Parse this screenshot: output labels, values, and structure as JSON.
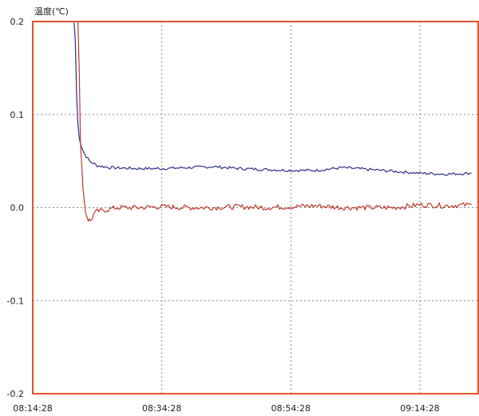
{
  "chart_data": {
    "type": "line",
    "ylabel": "温度(℃)",
    "ylim": [
      -0.2,
      0.2
    ],
    "y_ticks": [
      "0.2",
      "0.1",
      "0.0",
      "-0.1",
      "-0.2"
    ],
    "x_ticks": [
      "08:14:28",
      "08:34:28",
      "08:54:28",
      "09:14:28"
    ],
    "grid": true,
    "frame_color": "#e0552a",
    "series": [
      {
        "color": "#2b2f8c",
        "x": [
          "08:14:28",
          "08:20:28",
          "08:20:52",
          "08:21:04",
          "08:21:16",
          "08:21:28",
          "08:21:40",
          "08:22:04",
          "08:22:28",
          "08:23:16",
          "08:24:28",
          "08:26:28",
          "08:30:28",
          "08:34:28",
          "08:38:28",
          "08:42:28",
          "08:46:28",
          "08:50:28",
          "08:54:28",
          "08:58:28",
          "09:02:28",
          "09:06:28",
          "09:10:28",
          "09:14:28",
          "09:18:28",
          "09:22:28"
        ],
        "y": [
          0.2,
          0.2,
          0.2,
          0.18,
          0.12,
          0.09,
          0.075,
          0.065,
          0.058,
          0.05,
          0.045,
          0.043,
          0.042,
          0.042,
          0.043,
          0.044,
          0.042,
          0.041,
          0.04,
          0.04,
          0.043,
          0.041,
          0.039,
          0.037,
          0.036,
          0.037
        ],
        "noise": 0.0015
      },
      {
        "color": "#c0392b",
        "x": [
          "08:14:28",
          "08:21:04",
          "08:21:28",
          "08:21:40",
          "08:21:52",
          "08:22:16",
          "08:22:40",
          "08:23:04",
          "08:23:28",
          "08:23:52",
          "08:24:28",
          "08:25:28",
          "08:27:28",
          "08:30:28",
          "08:34:28",
          "08:38:28",
          "08:42:28",
          "08:46:28",
          "08:50:28",
          "08:54:28",
          "08:58:28",
          "09:02:28",
          "09:06:28",
          "09:10:28",
          "09:14:28",
          "09:18:28",
          "09:22:28"
        ],
        "y": [
          0.2,
          0.2,
          0.2,
          0.15,
          0.07,
          0.02,
          -0.005,
          -0.013,
          -0.014,
          -0.008,
          -0.004,
          -0.003,
          0.0,
          0.0,
          0.001,
          0.0,
          0.0,
          0.001,
          0.0,
          0.001,
          0.002,
          0.0,
          0.0,
          0.0,
          0.003,
          0.002,
          0.003
        ],
        "noise": 0.0028
      }
    ]
  }
}
